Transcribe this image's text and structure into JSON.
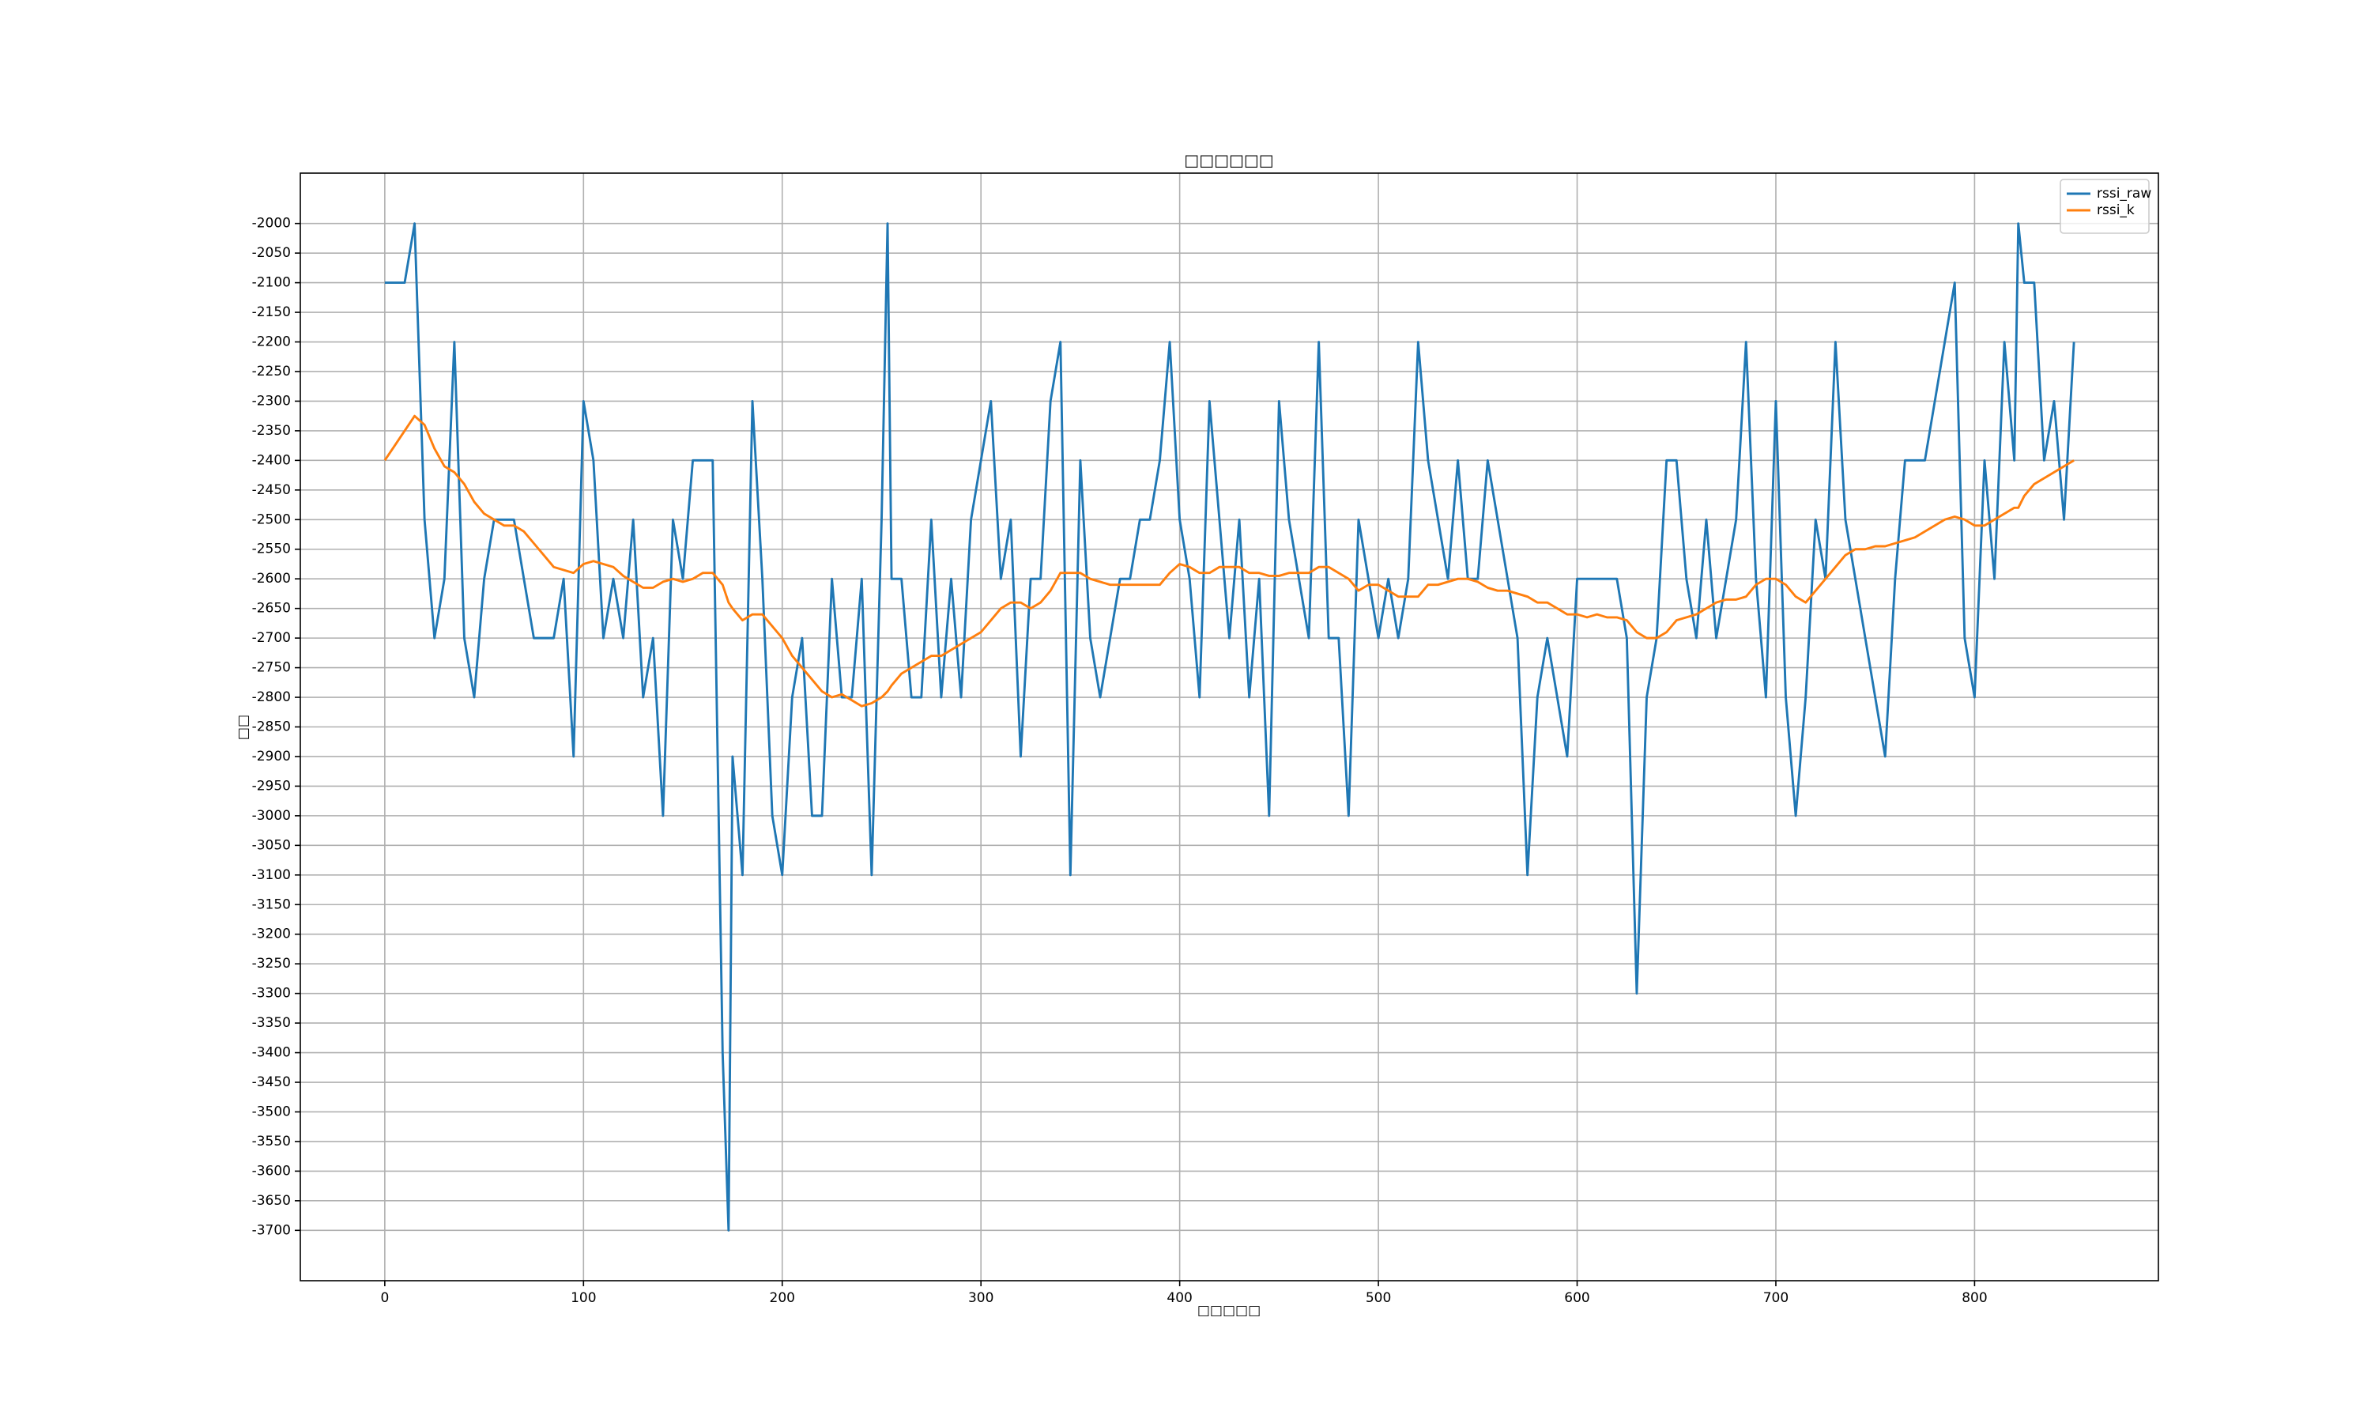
{
  "chart_data": {
    "type": "line",
    "title": "□□□□□□",
    "x_label": "□□□□□",
    "y_label": "□□",
    "x": [
      0,
      5,
      10,
      15,
      20,
      25,
      30,
      35,
      40,
      45,
      50,
      55,
      60,
      65,
      70,
      75,
      80,
      85,
      90,
      95,
      100,
      105,
      110,
      115,
      120,
      125,
      130,
      135,
      140,
      145,
      150,
      155,
      160,
      165,
      170,
      173,
      175,
      180,
      185,
      190,
      195,
      200,
      205,
      210,
      215,
      220,
      225,
      230,
      235,
      240,
      245,
      250,
      253,
      255,
      260,
      265,
      270,
      275,
      280,
      285,
      290,
      295,
      300,
      305,
      310,
      315,
      320,
      325,
      330,
      335,
      340,
      345,
      350,
      355,
      360,
      365,
      370,
      375,
      380,
      385,
      390,
      395,
      400,
      405,
      410,
      415,
      420,
      425,
      430,
      435,
      440,
      445,
      450,
      455,
      460,
      465,
      470,
      475,
      480,
      485,
      490,
      495,
      500,
      505,
      510,
      515,
      520,
      525,
      530,
      535,
      540,
      545,
      550,
      555,
      560,
      565,
      570,
      575,
      580,
      585,
      590,
      595,
      600,
      605,
      610,
      615,
      620,
      625,
      630,
      635,
      640,
      645,
      650,
      655,
      660,
      665,
      670,
      675,
      680,
      685,
      690,
      695,
      700,
      705,
      710,
      715,
      720,
      725,
      730,
      735,
      740,
      745,
      750,
      755,
      760,
      765,
      770,
      775,
      780,
      785,
      790,
      795,
      800,
      805,
      810,
      815,
      820,
      822,
      825,
      830,
      835,
      840,
      845,
      850
    ],
    "series": [
      {
        "name": "rssi_raw",
        "color": "#1f77b4",
        "values": [
          -2100,
          -2100,
          -2100,
          -2000,
          -2500,
          -2700,
          -2600,
          -2200,
          -2700,
          -2800,
          -2600,
          -2500,
          -2500,
          -2500,
          -2600,
          -2700,
          -2700,
          -2700,
          -2600,
          -2900,
          -2300,
          -2400,
          -2700,
          -2600,
          -2700,
          -2500,
          -2800,
          -2700,
          -3000,
          -2500,
          -2600,
          -2400,
          -2400,
          -2400,
          -3400,
          -3700,
          -2900,
          -3100,
          -2300,
          -2600,
          -3000,
          -3100,
          -2800,
          -2700,
          -3000,
          -3000,
          -2600,
          -2800,
          -2800,
          -2600,
          -3100,
          -2500,
          -2000,
          -2600,
          -2600,
          -2800,
          -2800,
          -2500,
          -2800,
          -2600,
          -2800,
          -2500,
          -2400,
          -2300,
          -2600,
          -2500,
          -2900,
          -2600,
          -2600,
          -2300,
          -2200,
          -3100,
          -2400,
          -2700,
          -2800,
          -2700,
          -2600,
          -2600,
          -2500,
          -2500,
          -2400,
          -2200,
          -2500,
          -2600,
          -2800,
          -2300,
          -2500,
          -2700,
          -2500,
          -2800,
          -2600,
          -3000,
          -2300,
          -2500,
          -2600,
          -2700,
          -2200,
          -2700,
          -2700,
          -3000,
          -2500,
          -2600,
          -2700,
          -2600,
          -2700,
          -2600,
          -2200,
          -2400,
          -2500,
          -2600,
          -2400,
          -2600,
          -2600,
          -2400,
          -2500,
          -2600,
          -2700,
          -3100,
          -2800,
          -2700,
          -2800,
          -2900,
          -2600,
          -2600,
          -2600,
          -2600,
          -2600,
          -2700,
          -3300,
          -2800,
          -2700,
          -2400,
          -2400,
          -2600,
          -2700,
          -2500,
          -2700,
          -2600,
          -2500,
          -2200,
          -2600,
          -2800,
          -2300,
          -2800,
          -3000,
          -2800,
          -2500,
          -2600,
          -2200,
          -2500,
          -2600,
          -2700,
          -2800,
          -2900,
          -2600,
          -2400,
          -2400,
          -2400,
          -2300,
          -2200,
          -2100,
          -2700,
          -2800,
          -2400,
          -2600,
          -2200,
          -2400,
          -2000,
          -2100,
          -2100,
          -2400,
          -2300,
          -2500,
          -2200
        ]
      },
      {
        "name": "rssi_k",
        "color": "#ff7f0e",
        "values": [
          -2400,
          -2375,
          -2350,
          -2325,
          -2340,
          -2380,
          -2410,
          -2420,
          -2440,
          -2470,
          -2490,
          -2500,
          -2510,
          -2510,
          -2520,
          -2540,
          -2560,
          -2580,
          -2585,
          -2590,
          -2575,
          -2570,
          -2575,
          -2580,
          -2595,
          -2605,
          -2615,
          -2615,
          -2605,
          -2600,
          -2605,
          -2600,
          -2590,
          -2590,
          -2610,
          -2640,
          -2650,
          -2670,
          -2660,
          -2660,
          -2680,
          -2700,
          -2730,
          -2750,
          -2770,
          -2790,
          -2800,
          -2795,
          -2805,
          -2815,
          -2810,
          -2800,
          -2790,
          -2780,
          -2760,
          -2750,
          -2740,
          -2730,
          -2730,
          -2720,
          -2710,
          -2700,
          -2690,
          -2670,
          -2650,
          -2640,
          -2640,
          -2650,
          -2640,
          -2620,
          -2590,
          -2590,
          -2590,
          -2600,
          -2605,
          -2610,
          -2610,
          -2610,
          -2610,
          -2610,
          -2610,
          -2590,
          -2575,
          -2580,
          -2590,
          -2590,
          -2580,
          -2580,
          -2580,
          -2590,
          -2590,
          -2595,
          -2595,
          -2590,
          -2590,
          -2590,
          -2580,
          -2580,
          -2590,
          -2600,
          -2620,
          -2610,
          -2610,
          -2620,
          -2630,
          -2630,
          -2630,
          -2610,
          -2610,
          -2605,
          -2600,
          -2600,
          -2605,
          -2615,
          -2620,
          -2620,
          -2625,
          -2630,
          -2640,
          -2640,
          -2650,
          -2660,
          -2660,
          -2665,
          -2660,
          -2665,
          -2665,
          -2670,
          -2690,
          -2700,
          -2700,
          -2690,
          -2670,
          -2665,
          -2660,
          -2650,
          -2640,
          -2635,
          -2635,
          -2630,
          -2610,
          -2600,
          -2600,
          -2610,
          -2630,
          -2640,
          -2620,
          -2600,
          -2580,
          -2560,
          -2550,
          -2550,
          -2545,
          -2545,
          -2540,
          -2535,
          -2530,
          -2520,
          -2510,
          -2500,
          -2495,
          -2500,
          -2510,
          -2510,
          -2500,
          -2490,
          -2480,
          -2480,
          -2460,
          -2440,
          -2430,
          -2420,
          -2410,
          -2400
        ]
      }
    ],
    "xlim": [
      -42.5,
      892.5
    ],
    "ylim": [
      -3785,
      -1915
    ],
    "xticks": [
      0,
      100,
      200,
      300,
      400,
      500,
      600,
      700,
      800
    ],
    "yticks": [
      -3700,
      -3650,
      -3600,
      -3550,
      -3500,
      -3450,
      -3400,
      -3350,
      -3300,
      -3250,
      -3200,
      -3150,
      -3100,
      -3050,
      -3000,
      -2950,
      -2900,
      -2850,
      -2800,
      -2750,
      -2700,
      -2650,
      -2600,
      -2550,
      -2500,
      -2450,
      -2400,
      -2350,
      -2300,
      -2250,
      -2200,
      -2150,
      -2100,
      -2050,
      -2000
    ],
    "grid": true,
    "legend": "upper right"
  }
}
